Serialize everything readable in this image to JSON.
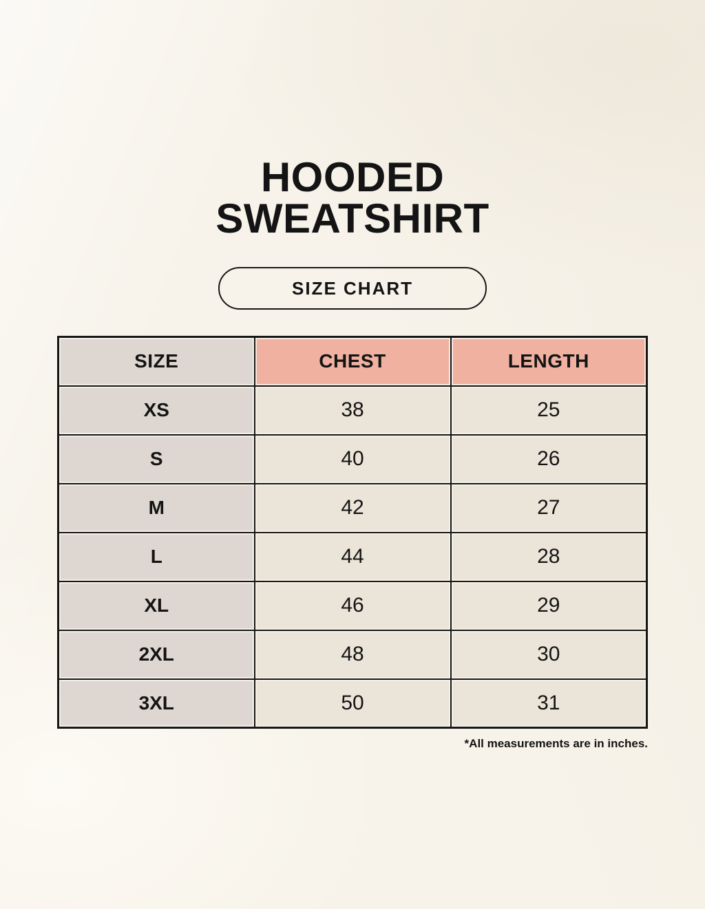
{
  "header": {
    "title_line1": "HOODED",
    "title_line2": "SWEATSHIRT"
  },
  "badge": {
    "label": "SIZE CHART"
  },
  "chart_data": {
    "type": "table",
    "columns": [
      "SIZE",
      "CHEST",
      "LENGTH"
    ],
    "rows": [
      [
        "XS",
        "38",
        "25"
      ],
      [
        "S",
        "40",
        "26"
      ],
      [
        "M",
        "42",
        "27"
      ],
      [
        "L",
        "44",
        "28"
      ],
      [
        "XL",
        "46",
        "29"
      ],
      [
        "2XL",
        "48",
        "30"
      ],
      [
        "3XL",
        "50",
        "31"
      ]
    ],
    "units": "inches"
  },
  "footnote": "*All measurements are in inches.",
  "colors": {
    "page-bg": "#f7f3ea",
    "accent-salmon": "#f0b1a1",
    "cell-gray": "#ded7d1",
    "cell-cream": "#ebe4d8",
    "border-dark": "#161616",
    "text-dark": "#141414"
  }
}
